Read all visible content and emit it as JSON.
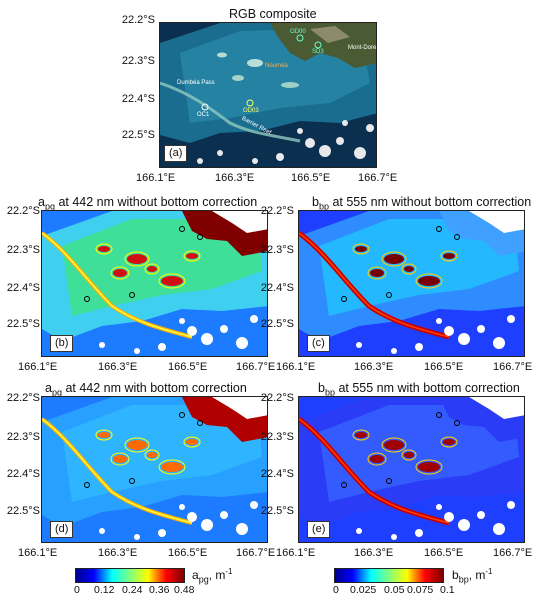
{
  "panels": {
    "a": {
      "title": "RGB composite",
      "label": "(a)",
      "lat_ticks": [
        "22.2°S",
        "22.3°S",
        "22.4°S",
        "22.5°S"
      ],
      "lon_ticks": [
        "166.1°E",
        "166.3°E",
        "166.5°E",
        "166.7°E"
      ],
      "place_labels": [
        "Dumbéa Pass",
        "Barrier Reef",
        "OC1",
        "OD03",
        "OD00",
        "SD3",
        "Nouméa",
        "Mont-Dore"
      ]
    },
    "b": {
      "title_pre": "a",
      "title_sub": "pg",
      "title_post": " at 442 nm without bottom correction",
      "label": "(b)"
    },
    "c": {
      "title_pre": "b",
      "title_sub": "bp",
      "title_post": " at 555 nm without bottom correction",
      "label": "(c)"
    },
    "d": {
      "title_pre": "a",
      "title_sub": "pg",
      "title_post": " at 442 nm with bottom correction",
      "label": "(d)"
    },
    "e": {
      "title_pre": "b",
      "title_sub": "bp",
      "title_post": " at 555 nm with bottom correction",
      "label": "(e)"
    }
  },
  "lat_ticks": [
    "22.2°S",
    "22.3°S",
    "22.4°S",
    "22.5°S"
  ],
  "lon_ticks": [
    "166.1°E",
    "166.3°E",
    "166.5°E",
    "166.7°E"
  ],
  "colorbars": {
    "apg": {
      "ticks": [
        "0",
        "0.12",
        "0.24",
        "0.36",
        "0.48"
      ],
      "unit_pre": "a",
      "unit_sub": "pg",
      "unit_post": ", m",
      "unit_sup": "-1"
    },
    "bbp": {
      "ticks": [
        "0",
        "0.025",
        "0.05",
        "0.075",
        "0.1"
      ],
      "unit_pre": "b",
      "unit_sub": "bp",
      "unit_post": ", m",
      "unit_sup": "-1"
    }
  },
  "colors": {
    "jet": [
      "#00008f",
      "#0000ff",
      "#00ffff",
      "#7fff7f",
      "#ffff00",
      "#ff0000",
      "#7f0000"
    ],
    "land_rgb": "#4a5a33",
    "sea_rgb": "#0b3a5e",
    "lagoon_rgb": "#2a8aa8"
  }
}
